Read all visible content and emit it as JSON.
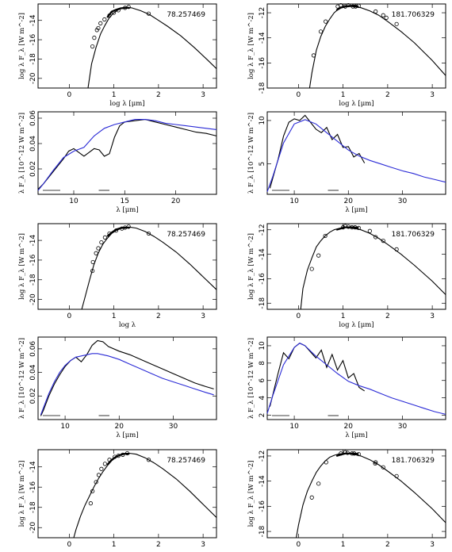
{
  "chart_data": [
    {
      "type": "line",
      "id_label": "78.257469",
      "ylabel": "log λ F_λ [W m^-2]",
      "xlabel": "log λ [μm]",
      "xlim": [
        -0.7,
        3.3
      ],
      "ylim": [
        -21,
        -12.3
      ],
      "xticks": [
        0,
        1,
        2,
        3
      ],
      "yticks": [
        -20,
        -18,
        -16,
        -14
      ],
      "model": {
        "x": [
          0.42,
          0.5,
          0.6,
          0.7,
          0.8,
          0.9,
          1.0,
          1.1,
          1.2,
          1.3,
          1.4,
          1.6,
          1.8,
          2.0,
          2.2,
          2.5,
          2.8,
          3.1,
          3.3
        ],
        "y": [
          -21,
          -18.5,
          -16.8,
          -15.4,
          -14.5,
          -13.7,
          -13.2,
          -12.9,
          -12.7,
          -12.65,
          -12.7,
          -13.0,
          -13.4,
          -14.0,
          -14.6,
          -15.6,
          -16.8,
          -18.1,
          -19.0
        ]
      },
      "ir_spectrum": {
        "x": [
          0.85,
          0.95,
          1.05,
          1.15,
          1.25,
          1.35
        ],
        "y": [
          -13.7,
          -13.1,
          -12.9,
          -12.75,
          -12.7,
          -12.7
        ]
      },
      "photometry": {
        "x": [
          0.52,
          0.56,
          0.62,
          0.65,
          0.7,
          0.79,
          0.9,
          1.0,
          1.1,
          1.25,
          1.33,
          1.78
        ],
        "y": [
          -16.7,
          -15.8,
          -15.0,
          -14.8,
          -14.3,
          -13.9,
          -13.5,
          -13.2,
          -12.95,
          -12.7,
          -12.6,
          -13.3
        ]
      }
    },
    {
      "type": "line",
      "id_label": "181.706329",
      "ylabel": "log λ F_λ [W m^-2]",
      "xlabel": "log λ [μm]",
      "xlim": [
        -0.7,
        3.3
      ],
      "ylim": [
        -18,
        -11.3
      ],
      "xticks": [
        0,
        1,
        2,
        3
      ],
      "yticks": [
        -18,
        -16,
        -14,
        -12
      ],
      "model": {
        "x": [
          0.25,
          0.3,
          0.4,
          0.5,
          0.6,
          0.7,
          0.8,
          0.9,
          1.0,
          1.1,
          1.2,
          1.4,
          1.6,
          1.8,
          2.0,
          2.3,
          2.6,
          3.0,
          3.3
        ],
        "y": [
          -18,
          -16.8,
          -15.0,
          -13.9,
          -13.1,
          -12.5,
          -12.0,
          -11.7,
          -11.55,
          -11.5,
          -11.5,
          -11.6,
          -11.85,
          -12.2,
          -12.7,
          -13.5,
          -14.4,
          -15.8,
          -17.0
        ]
      },
      "ir_spectrum": {
        "x": [
          0.85,
          0.95,
          1.05,
          1.15,
          1.25,
          1.35
        ],
        "y": [
          -11.8,
          -11.6,
          -11.5,
          -11.45,
          -11.45,
          -11.5
        ]
      },
      "photometry": {
        "x": [
          0.34,
          0.5,
          0.61,
          0.88,
          0.95,
          1.05,
          1.12,
          1.22,
          1.28,
          1.35,
          1.73,
          1.9,
          1.97,
          2.2
        ],
        "y": [
          -15.4,
          -13.5,
          -12.7,
          -11.5,
          -11.4,
          -11.5,
          -11.4,
          -11.5,
          -11.5,
          -11.45,
          -11.9,
          -12.2,
          -12.4,
          -12.9
        ]
      }
    },
    {
      "type": "line",
      "ylabel": "λ F_λ [10^-12 W m^-2]",
      "xlabel": "λ [μm]",
      "xlim": [
        6.5,
        24
      ],
      "ylim": [
        0,
        0.065
      ],
      "xticks": [
        10,
        15,
        20
      ],
      "yticks": [
        0.02,
        0.04,
        0.06
      ],
      "series": [
        {
          "name": "spectrum",
          "color": "#000000",
          "x": [
            6.5,
            7,
            8,
            9,
            9.5,
            10,
            10.5,
            11,
            11.5,
            12,
            12.5,
            13,
            13.5,
            14,
            14.5,
            15,
            16,
            17,
            18,
            19,
            20,
            21,
            22,
            23,
            24
          ],
          "y": [
            0.004,
            0.008,
            0.018,
            0.028,
            0.034,
            0.036,
            0.033,
            0.03,
            0.033,
            0.036,
            0.035,
            0.03,
            0.032,
            0.045,
            0.054,
            0.057,
            0.058,
            0.059,
            0.057,
            0.055,
            0.053,
            0.051,
            0.049,
            0.048,
            0.046
          ]
        },
        {
          "name": "model",
          "color": "#2b2bd6",
          "x": [
            6.5,
            7,
            8,
            9,
            10,
            11,
            12,
            13,
            14,
            15,
            16,
            17,
            18,
            19,
            20,
            21,
            22,
            23,
            24
          ],
          "y": [
            0.003,
            0.008,
            0.019,
            0.029,
            0.034,
            0.037,
            0.046,
            0.052,
            0.055,
            0.057,
            0.059,
            0.059,
            0.058,
            0.056,
            0.055,
            0.054,
            0.053,
            0.052,
            0.051
          ]
        }
      ]
    },
    {
      "type": "line",
      "ylabel": "λ F_λ [10^-12 W m^-2]",
      "xlabel": "λ [μm]",
      "xlim": [
        5,
        38
      ],
      "ylim": [
        1.5,
        11
      ],
      "xticks": [
        10,
        20,
        30
      ],
      "yticks": [
        5,
        10
      ],
      "series": [
        {
          "name": "spectrum",
          "color": "#000000",
          "x": [
            5.5,
            7,
            8,
            9,
            10,
            11,
            12,
            13,
            14,
            15,
            16,
            17,
            18,
            19,
            20,
            21,
            22,
            23
          ],
          "y": [
            2.2,
            5.5,
            8.2,
            9.8,
            10.2,
            10.0,
            10.6,
            9.8,
            9.0,
            8.6,
            9.2,
            7.8,
            8.4,
            6.9,
            7.0,
            5.8,
            6.2,
            5.1
          ]
        },
        {
          "name": "model",
          "color": "#2b2bd6",
          "x": [
            5,
            6,
            8,
            10,
            12,
            14,
            16,
            18,
            20,
            22,
            24,
            26,
            28,
            30,
            32,
            34,
            36,
            38
          ],
          "y": [
            1.8,
            3.5,
            7.4,
            9.6,
            10.1,
            9.6,
            8.6,
            7.6,
            6.6,
            5.9,
            5.4,
            5.0,
            4.6,
            4.2,
            3.9,
            3.5,
            3.2,
            2.9
          ]
        }
      ]
    },
    {
      "type": "line",
      "id_label": "78.257469",
      "ylabel": "log λ F_λ [W m^-2]",
      "xlabel": "log λ",
      "xlim": [
        -0.7,
        3.3
      ],
      "ylim": [
        -21,
        -12.3
      ],
      "xticks": [
        0,
        1,
        2,
        3
      ],
      "yticks": [
        -20,
        -18,
        -16,
        -14
      ],
      "model": {
        "x": [
          0.28,
          0.35,
          0.45,
          0.55,
          0.65,
          0.75,
          0.85,
          0.95,
          1.05,
          1.15,
          1.25,
          1.35,
          1.5,
          1.7,
          1.9,
          2.1,
          2.4,
          2.7,
          3.0,
          3.3
        ],
        "y": [
          -21,
          -19.8,
          -18.1,
          -16.5,
          -15.3,
          -14.4,
          -13.8,
          -13.3,
          -13.0,
          -12.8,
          -12.7,
          -12.65,
          -12.75,
          -13.1,
          -13.6,
          -14.2,
          -15.2,
          -16.4,
          -17.7,
          -19.0
        ]
      },
      "ir_spectrum": {
        "x": [
          0.85,
          0.95,
          1.05,
          1.15,
          1.25,
          1.35
        ],
        "y": [
          -13.6,
          -13.2,
          -12.9,
          -12.75,
          -12.7,
          -12.7
        ]
      },
      "photometry": {
        "x": [
          0.52,
          0.53,
          0.6,
          0.65,
          0.72,
          0.8,
          0.9,
          1.05,
          1.18,
          1.25,
          1.33,
          1.78
        ],
        "y": [
          -17.1,
          -16.2,
          -15.3,
          -14.8,
          -14.2,
          -13.7,
          -13.3,
          -13.0,
          -12.8,
          -12.7,
          -12.6,
          -13.3
        ]
      }
    },
    {
      "type": "line",
      "id_label": "181.706329",
      "ylabel": "log λ F_λ [W m^-2]",
      "xlabel": "log λ [μm]",
      "xlim": [
        -0.7,
        3.3
      ],
      "ylim": [
        -18.5,
        -11.5
      ],
      "xticks": [
        0,
        1,
        2,
        3
      ],
      "yticks": [
        -18,
        -16,
        -14,
        -12
      ],
      "model": {
        "x": [
          0.05,
          0.1,
          0.2,
          0.3,
          0.4,
          0.5,
          0.6,
          0.7,
          0.8,
          0.9,
          1.0,
          1.1,
          1.2,
          1.4,
          1.6,
          1.8,
          2.0,
          2.3,
          2.6,
          3.0,
          3.3
        ],
        "y": [
          -18.5,
          -16.8,
          -15.3,
          -14.3,
          -13.4,
          -12.9,
          -12.5,
          -12.2,
          -12.0,
          -11.9,
          -11.8,
          -11.8,
          -11.85,
          -12.0,
          -12.3,
          -12.7,
          -13.2,
          -14.0,
          -14.9,
          -16.2,
          -17.3
        ]
      },
      "ir_spectrum": {
        "x": [
          0.85,
          0.95,
          1.05,
          1.15,
          1.25,
          1.35
        ],
        "y": [
          -12.0,
          -11.9,
          -11.8,
          -11.8,
          -11.8,
          -11.85
        ]
      },
      "photometry": {
        "x": [
          0.3,
          0.45,
          0.6,
          1.0,
          1.05,
          1.12,
          1.2,
          1.27,
          1.35,
          1.6,
          1.73,
          1.9,
          2.2
        ],
        "y": [
          -15.2,
          -14.1,
          -12.5,
          -11.8,
          -11.7,
          -11.75,
          -11.8,
          -11.8,
          -11.85,
          -12.1,
          -12.6,
          -12.9,
          -13.6
        ]
      }
    },
    {
      "type": "line",
      "ylabel": "λ F_λ [10^-12 W m^-2]",
      "xlabel": "λ [μm]",
      "xlim": [
        5,
        38
      ],
      "ylim": [
        0,
        0.07
      ],
      "xticks": [
        10,
        20,
        30
      ],
      "yticks": [
        0.02,
        0.04,
        0.06
      ],
      "series": [
        {
          "name": "spectrum",
          "color": "#000000",
          "x": [
            5.5,
            6,
            7,
            8,
            9,
            10,
            11,
            12,
            13,
            14,
            15,
            16,
            17,
            18,
            20,
            22,
            24,
            26,
            28,
            30,
            32,
            34,
            36,
            37.5
          ],
          "y": [
            0.003,
            0.008,
            0.02,
            0.03,
            0.038,
            0.045,
            0.05,
            0.053,
            0.049,
            0.055,
            0.063,
            0.067,
            0.066,
            0.062,
            0.058,
            0.055,
            0.051,
            0.047,
            0.043,
            0.039,
            0.035,
            0.031,
            0.028,
            0.026
          ]
        },
        {
          "name": "model",
          "color": "#2b2bd6",
          "x": [
            5.5,
            6,
            7,
            8,
            9,
            10,
            11,
            12,
            13,
            14,
            15,
            16,
            17,
            18,
            20,
            22,
            24,
            26,
            28,
            30,
            32,
            34,
            36,
            37.5
          ],
          "y": [
            0.004,
            0.01,
            0.022,
            0.032,
            0.04,
            0.046,
            0.05,
            0.053,
            0.054,
            0.055,
            0.056,
            0.056,
            0.055,
            0.054,
            0.051,
            0.047,
            0.043,
            0.039,
            0.035,
            0.032,
            0.029,
            0.026,
            0.023,
            0.021
          ]
        }
      ]
    },
    {
      "type": "line",
      "ylabel": "λ F_λ [10^-12 W m^-2]",
      "xlabel": "λ [μm]",
      "xlim": [
        5,
        38
      ],
      "ylim": [
        1.5,
        11
      ],
      "xticks": [
        10,
        20,
        30
      ],
      "yticks": [
        2,
        4,
        6,
        8,
        10
      ],
      "series": [
        {
          "name": "spectrum",
          "color": "#000000",
          "x": [
            5.5,
            7,
            8,
            9,
            10,
            11,
            12,
            13,
            14,
            15,
            16,
            17,
            18,
            19,
            20,
            21,
            22,
            23
          ],
          "y": [
            3.0,
            6.8,
            9.2,
            8.5,
            9.8,
            10.3,
            10.0,
            9.3,
            8.6,
            9.5,
            7.5,
            9.0,
            7.2,
            8.3,
            6.3,
            6.8,
            5.2,
            4.8
          ]
        },
        {
          "name": "model",
          "color": "#2b2bd6",
          "x": [
            5,
            6,
            8,
            10,
            11,
            12,
            14,
            16,
            18,
            20,
            22,
            24,
            26,
            28,
            30,
            32,
            34,
            36,
            38
          ],
          "y": [
            2.2,
            4.2,
            7.8,
            9.8,
            10.3,
            10.0,
            8.8,
            7.8,
            6.8,
            5.9,
            5.4,
            5.0,
            4.5,
            4.0,
            3.6,
            3.2,
            2.8,
            2.4,
            2.1
          ]
        }
      ]
    },
    {
      "type": "line",
      "id_label": "78.257469",
      "ylabel": "log λ F_λ [W m^-2]",
      "xlabel": "",
      "xlim": [
        -0.7,
        3.3
      ],
      "ylim": [
        -21,
        -12.3
      ],
      "xticks": [
        0,
        1,
        2,
        3
      ],
      "yticks": [
        -20,
        -18,
        -16,
        -14
      ],
      "model": {
        "x": [
          0.1,
          0.15,
          0.25,
          0.35,
          0.45,
          0.55,
          0.65,
          0.75,
          0.85,
          0.95,
          1.05,
          1.15,
          1.25,
          1.35,
          1.5,
          1.7,
          1.9,
          2.1,
          2.4,
          2.7,
          3.0,
          3.3
        ],
        "y": [
          -21,
          -20.2,
          -18.9,
          -17.8,
          -16.9,
          -16.0,
          -15.2,
          -14.5,
          -13.9,
          -13.4,
          -13.05,
          -12.8,
          -12.7,
          -12.65,
          -12.75,
          -13.1,
          -13.6,
          -14.2,
          -15.2,
          -16.4,
          -17.7,
          -19.0
        ]
      },
      "ir_spectrum": {
        "x": [
          0.85,
          0.95,
          1.05,
          1.15,
          1.25,
          1.35
        ],
        "y": [
          -13.8,
          -13.3,
          -13.0,
          -12.8,
          -12.7,
          -12.7
        ]
      },
      "photometry": {
        "x": [
          0.48,
          0.52,
          0.6,
          0.66,
          0.72,
          0.8,
          0.9,
          1.02,
          1.1,
          1.2,
          1.3,
          1.78
        ],
        "y": [
          -17.6,
          -16.4,
          -15.5,
          -14.8,
          -14.2,
          -13.7,
          -13.3,
          -13.0,
          -12.9,
          -12.8,
          -12.65,
          -13.3
        ]
      }
    },
    {
      "type": "line",
      "id_label": "181.706329",
      "ylabel": "log λ F_λ [W m^-2]",
      "xlabel": "",
      "xlim": [
        -0.7,
        3.3
      ],
      "ylim": [
        -18.5,
        -11.5
      ],
      "xticks": [
        0,
        1,
        2,
        3
      ],
      "yticks": [
        -18,
        -16,
        -14,
        -12
      ],
      "model": {
        "x": [
          -0.05,
          0.0,
          0.1,
          0.2,
          0.3,
          0.4,
          0.5,
          0.6,
          0.7,
          0.8,
          0.9,
          1.0,
          1.1,
          1.2,
          1.4,
          1.6,
          1.8,
          2.0,
          2.3,
          2.6,
          3.0,
          3.3
        ],
        "y": [
          -18.5,
          -17.5,
          -15.9,
          -14.8,
          -14.0,
          -13.3,
          -12.8,
          -12.4,
          -12.1,
          -11.95,
          -11.85,
          -11.8,
          -11.8,
          -11.85,
          -12.0,
          -12.3,
          -12.7,
          -13.2,
          -14.0,
          -14.9,
          -16.2,
          -17.3
        ]
      },
      "ir_spectrum": {
        "x": [
          0.85,
          0.95,
          1.05,
          1.15,
          1.25,
          1.35
        ],
        "y": [
          -12.0,
          -11.9,
          -11.8,
          -11.8,
          -11.8,
          -11.85
        ]
      },
      "photometry": {
        "x": [
          0.3,
          0.45,
          0.62,
          0.95,
          1.05,
          1.1,
          1.2,
          1.25,
          1.35,
          1.72,
          1.73,
          1.9,
          2.2
        ],
        "y": [
          -15.3,
          -14.2,
          -12.5,
          -11.8,
          -11.7,
          -11.75,
          -11.8,
          -11.8,
          -11.85,
          -12.6,
          -12.5,
          -12.9,
          -13.6
        ]
      }
    }
  ]
}
